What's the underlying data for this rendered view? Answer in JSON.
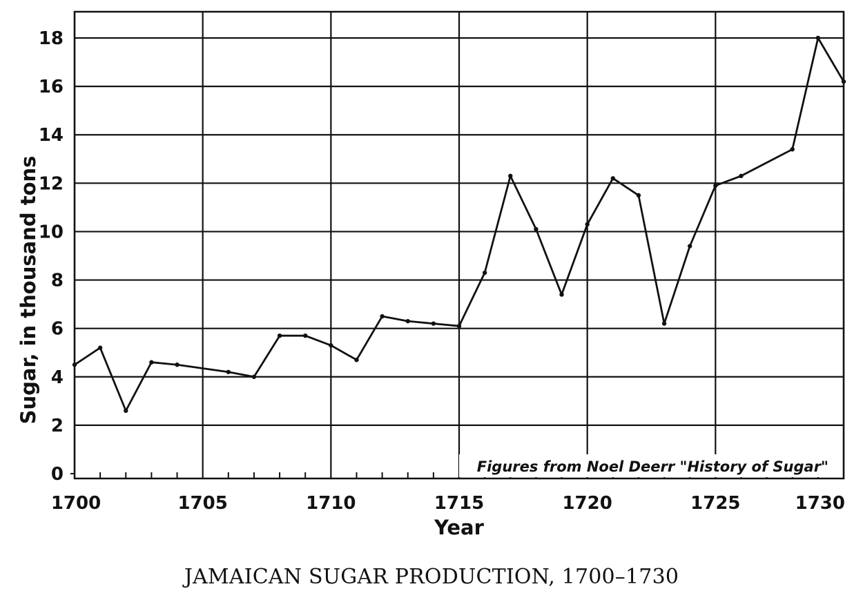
{
  "caption": "JAMAICAN SUGAR PRODUCTION, 1700–1730",
  "chart_data": {
    "type": "line",
    "title": "",
    "xlabel": "Year",
    "ylabel": "Sugar, in thousand tons",
    "annotation": "Figures from Noel Deerr \"History of Sugar\"",
    "xlim": [
      1700,
      1730
    ],
    "ylim": [
      0,
      19
    ],
    "x_ticks": [
      1700,
      1705,
      1710,
      1715,
      1720,
      1725,
      1730
    ],
    "y_ticks": [
      0,
      2,
      4,
      6,
      8,
      10,
      12,
      14,
      16,
      18
    ],
    "grid": true,
    "series": [
      {
        "x": [
          1700,
          1701,
          1702,
          1703,
          1704,
          1706,
          1707,
          1708,
          1709,
          1710,
          1711,
          1712,
          1713,
          1714,
          1715,
          1716,
          1717,
          1718,
          1719,
          1720,
          1721,
          1722,
          1723,
          1724,
          1725,
          1726,
          1728,
          1729,
          1730
        ],
        "y": [
          4.5,
          5.2,
          2.6,
          4.6,
          4.5,
          4.2,
          4.0,
          5.7,
          5.7,
          5.3,
          4.7,
          6.5,
          6.3,
          6.2,
          6.1,
          8.3,
          12.3,
          10.1,
          7.4,
          10.3,
          12.2,
          11.5,
          6.2,
          9.4,
          11.9,
          12.3,
          13.4,
          18.0,
          16.2
        ]
      }
    ]
  }
}
